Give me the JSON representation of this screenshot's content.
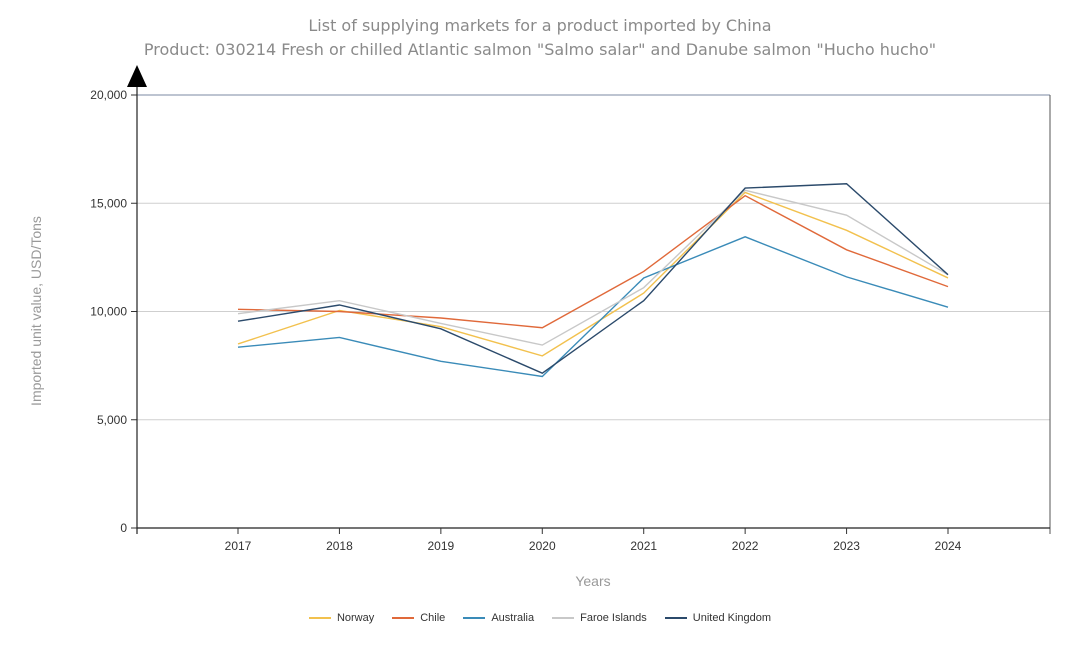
{
  "chart_data": {
    "type": "line",
    "title": "List of supplying markets for a product imported by China",
    "subtitle": "Product: 030214 Fresh or chilled Atlantic salmon \"Salmo salar\" and Danube salmon \"Hucho hucho\"",
    "xlabel": "Years",
    "ylabel": "Imported unit value, USD/Tons",
    "categories": [
      "2017",
      "2018",
      "2019",
      "2020",
      "2021",
      "2022",
      "2023",
      "2024"
    ],
    "ylim": [
      0,
      20000
    ],
    "yticks": [
      0,
      5000,
      10000,
      15000,
      20000
    ],
    "ytick_labels": [
      "0",
      "5,000",
      "10,000",
      "15,000",
      "20,000"
    ],
    "grid": true,
    "legend_position": "bottom",
    "series": [
      {
        "name": "Norway",
        "color": "#f2c14e",
        "values": [
          8500,
          10050,
          9300,
          7950,
          10850,
          15500,
          13750,
          11550
        ]
      },
      {
        "name": "Chile",
        "color": "#e0693a",
        "values": [
          10100,
          10000,
          9700,
          9250,
          11850,
          15350,
          12850,
          11150
        ]
      },
      {
        "name": "Australia",
        "color": "#3a8bb8",
        "values": [
          8350,
          8800,
          7700,
          7000,
          11550,
          13450,
          11600,
          10200
        ]
      },
      {
        "name": "Faroe Islands",
        "color": "#c8c8c8",
        "values": [
          9900,
          10500,
          9450,
          8450,
          11100,
          15600,
          14450,
          11700
        ]
      },
      {
        "name": "United Kingdom",
        "color": "#2b4a6b",
        "values": [
          9550,
          10300,
          9200,
          7150,
          10500,
          15700,
          15900,
          11700
        ]
      }
    ]
  }
}
